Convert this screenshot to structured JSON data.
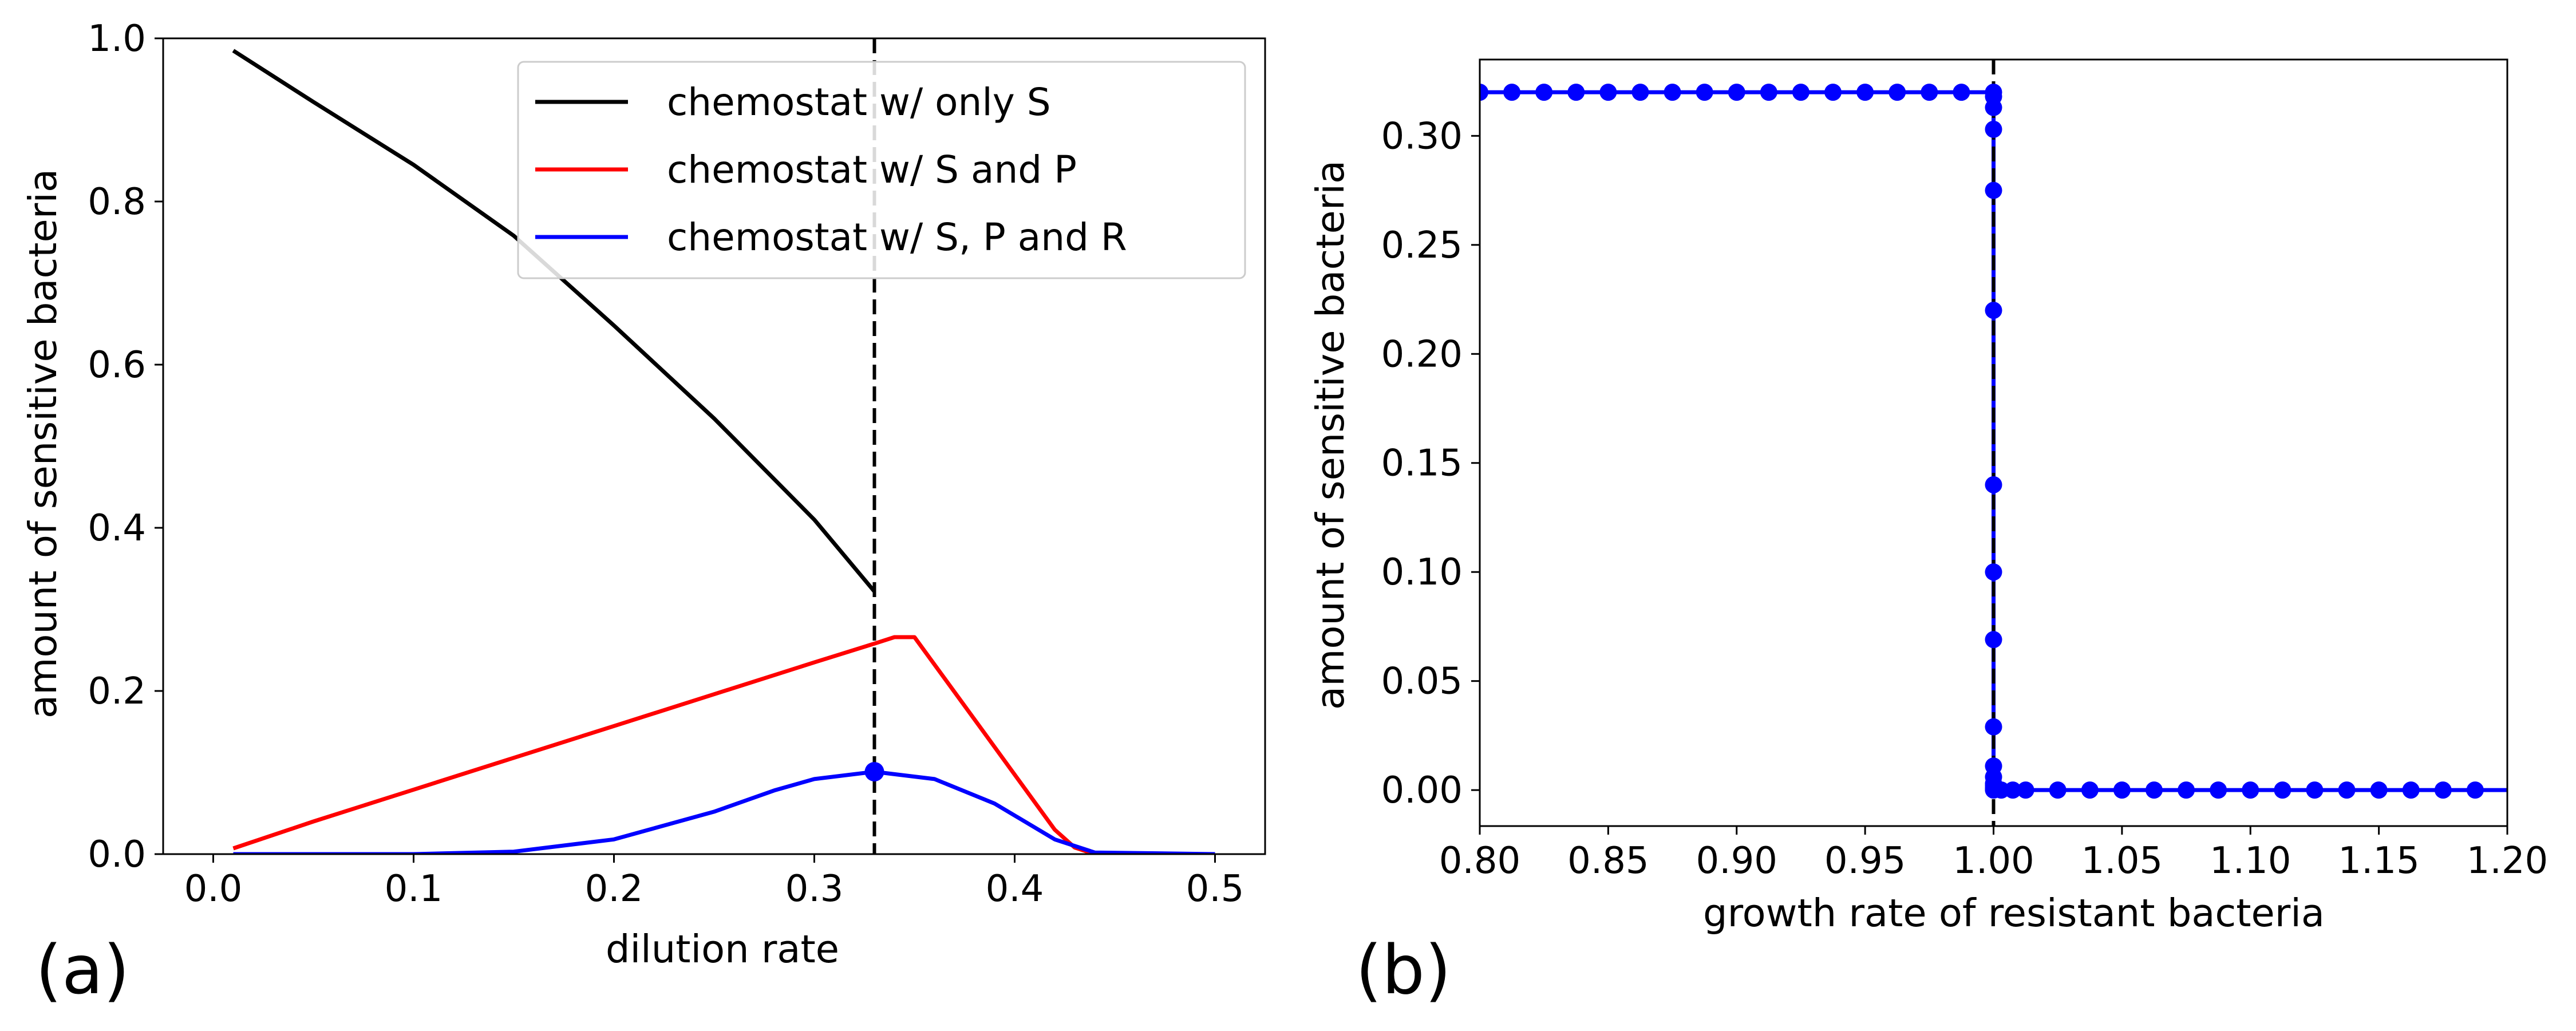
{
  "panel_labels": {
    "a": "(a)",
    "b": "(b)"
  },
  "chart_data": [
    {
      "type": "line",
      "panel": "(a)",
      "xlabel": "dilution rate",
      "ylabel": "amount of sensitive bacteria",
      "xlim": [
        -0.025,
        0.525
      ],
      "ylim": [
        0,
        1.0
      ],
      "xticks": [
        0.0,
        0.1,
        0.2,
        0.3,
        0.4,
        0.5
      ],
      "xtick_labels": [
        "0.0",
        "0.1",
        "0.2",
        "0.3",
        "0.4",
        "0.5"
      ],
      "yticks": [
        0.0,
        0.2,
        0.4,
        0.6,
        0.8,
        1.0
      ],
      "ytick_labels": [
        "0.0",
        "0.2",
        "0.4",
        "0.6",
        "0.8",
        "1.0"
      ],
      "grid": false,
      "legend_position": "top-right",
      "series": [
        {
          "name": "chemostat w/ only S",
          "color": "#000000",
          "x": [
            0.01,
            0.05,
            0.1,
            0.15,
            0.2,
            0.25,
            0.3,
            0.33
          ],
          "y": [
            0.985,
            0.922,
            0.845,
            0.758,
            0.648,
            0.534,
            0.41,
            0.322
          ]
        },
        {
          "name": "chemostat w/ S and P",
          "color": "#ff0000",
          "x": [
            0.01,
            0.05,
            0.1,
            0.15,
            0.2,
            0.25,
            0.3,
            0.33,
            0.34,
            0.35,
            0.38,
            0.42,
            0.43,
            0.44,
            0.5
          ],
          "y": [
            0.007,
            0.04,
            0.079,
            0.118,
            0.157,
            0.196,
            0.235,
            0.258,
            0.266,
            0.266,
            0.165,
            0.03,
            0.008,
            0.0,
            0.0
          ]
        },
        {
          "name": "chemostat w/ S, P and R",
          "color": "#0000ff",
          "x": [
            0.01,
            0.1,
            0.15,
            0.2,
            0.25,
            0.28,
            0.3,
            0.33,
            0.36,
            0.39,
            0.42,
            0.44,
            0.5
          ],
          "y": [
            0.0,
            0.0,
            0.003,
            0.018,
            0.052,
            0.078,
            0.092,
            0.101,
            0.092,
            0.062,
            0.018,
            0.002,
            0.0
          ]
        }
      ],
      "marker_point": {
        "x": 0.33,
        "y": 0.101,
        "color": "#0000ff"
      },
      "vline": {
        "x": 0.33,
        "style": "dashed",
        "color": "#000000"
      }
    },
    {
      "type": "line",
      "panel": "(b)",
      "xlabel": "growth rate of resistant bacteria",
      "ylabel": "amount of sensitive bacteria",
      "xlim": [
        0.8,
        1.2
      ],
      "ylim": [
        -0.0165,
        0.335
      ],
      "xticks": [
        0.8,
        0.85,
        0.9,
        0.95,
        1.0,
        1.05,
        1.1,
        1.15,
        1.2
      ],
      "xtick_labels": [
        "0.80",
        "0.85",
        "0.90",
        "0.95",
        "1.00",
        "1.05",
        "1.10",
        "1.15",
        "1.20"
      ],
      "yticks": [
        0.0,
        0.05,
        0.1,
        0.15,
        0.2,
        0.25,
        0.3
      ],
      "ytick_labels": [
        "0.00",
        "0.05",
        "0.10",
        "0.15",
        "0.20",
        "0.25",
        "0.30"
      ],
      "grid": false,
      "series": [
        {
          "color": "#0000ff",
          "marker": "circle",
          "x": [
            0.8,
            0.8125,
            0.825,
            0.8375,
            0.85,
            0.8625,
            0.875,
            0.8875,
            0.9,
            0.9125,
            0.925,
            0.9375,
            0.95,
            0.9625,
            0.975,
            0.9875,
            1.0,
            1.0,
            1.0,
            1.0,
            1.0,
            1.0,
            1.0,
            1.0,
            1.0,
            1.0,
            1.0,
            1.0,
            1.0,
            1.0,
            1.0,
            1.0,
            1.0,
            1.0,
            1.003,
            1.0075,
            1.0125,
            1.025,
            1.0375,
            1.05,
            1.0625,
            1.075,
            1.0875,
            1.1,
            1.1125,
            1.125,
            1.1375,
            1.15,
            1.1625,
            1.175,
            1.1875
          ],
          "y": [
            0.32,
            0.32,
            0.32,
            0.32,
            0.32,
            0.32,
            0.32,
            0.32,
            0.32,
            0.32,
            0.32,
            0.32,
            0.32,
            0.32,
            0.32,
            0.32,
            0.32,
            0.318,
            0.313,
            0.303,
            0.275,
            0.22,
            0.14,
            0.1,
            0.069,
            0.029,
            0.011,
            0.006,
            0.003,
            0.002,
            0.001,
            0.0005,
            0.0002,
            0.0,
            0.0,
            0.0,
            0.0,
            0.0,
            0.0,
            0.0,
            0.0,
            0.0,
            0.0,
            0.0,
            0.0,
            0.0,
            0.0,
            0.0,
            0.0,
            0.0,
            0.0
          ]
        }
      ],
      "vline": {
        "x": 1.0,
        "style": "dashed",
        "color": "#000000"
      }
    }
  ]
}
